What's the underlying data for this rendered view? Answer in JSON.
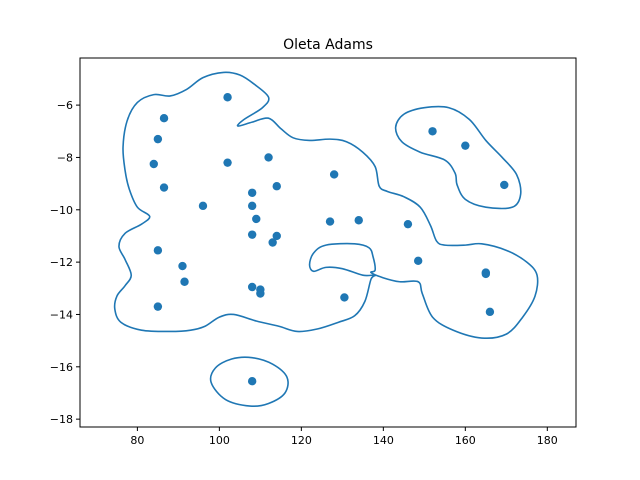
{
  "chart_data": {
    "type": "scatter",
    "title": "Oleta Adams",
    "xlabel": "",
    "ylabel": "",
    "xlim": [
      66,
      187
    ],
    "ylim": [
      -18.3,
      -4.2
    ],
    "xticks": [
      80,
      100,
      120,
      140,
      160,
      180
    ],
    "yticks": [
      -18,
      -16,
      -14,
      -12,
      -10,
      -8,
      -6
    ],
    "xtick_labels": [
      "80",
      "100",
      "120",
      "140",
      "160",
      "180"
    ],
    "ytick_labels": [
      "−18",
      "−16",
      "−14",
      "−12",
      "−10",
      "−8",
      "−6"
    ],
    "grid": false,
    "legend": "none",
    "series": [
      {
        "color": "#1f77b4",
        "points": [
          {
            "x": 102,
            "y": -5.7
          },
          {
            "x": 86.5,
            "y": -6.5
          },
          {
            "x": 85,
            "y": -7.3
          },
          {
            "x": 84,
            "y": -8.25
          },
          {
            "x": 86.5,
            "y": -9.15
          },
          {
            "x": 102,
            "y": -8.2
          },
          {
            "x": 112,
            "y": -8.0
          },
          {
            "x": 108,
            "y": -9.35
          },
          {
            "x": 114,
            "y": -9.1
          },
          {
            "x": 128,
            "y": -8.65
          },
          {
            "x": 96,
            "y": -9.85
          },
          {
            "x": 108,
            "y": -9.85
          },
          {
            "x": 109,
            "y": -10.35
          },
          {
            "x": 108,
            "y": -10.95
          },
          {
            "x": 114,
            "y": -11.0
          },
          {
            "x": 113,
            "y": -11.25
          },
          {
            "x": 127,
            "y": -10.45
          },
          {
            "x": 134,
            "y": -10.4
          },
          {
            "x": 146,
            "y": -10.55
          },
          {
            "x": 85,
            "y": -11.55
          },
          {
            "x": 91,
            "y": -12.15
          },
          {
            "x": 91.5,
            "y": -12.75
          },
          {
            "x": 148.5,
            "y": -11.95
          },
          {
            "x": 108,
            "y": -12.95
          },
          {
            "x": 110,
            "y": -13.05
          },
          {
            "x": 110,
            "y": -13.2
          },
          {
            "x": 130.5,
            "y": -13.35
          },
          {
            "x": 85,
            "y": -13.7
          },
          {
            "x": 165,
            "y": -12.4
          },
          {
            "x": 165,
            "y": -12.45
          },
          {
            "x": 166,
            "y": -13.9
          },
          {
            "x": 108,
            "y": -16.55
          },
          {
            "x": 152,
            "y": -7.0
          },
          {
            "x": 160,
            "y": -7.55
          },
          {
            "x": 169.5,
            "y": -9.05
          }
        ]
      }
    ],
    "contours": [
      {
        "color": "#1f77b4",
        "points": [
          [
            104.5,
            -6.8
          ],
          [
            108,
            -6.65
          ],
          [
            112,
            -6.5
          ],
          [
            115,
            -6.9
          ],
          [
            118,
            -7.25
          ],
          [
            122,
            -7.35
          ],
          [
            127,
            -7.3
          ],
          [
            131,
            -7.4
          ],
          [
            135,
            -7.8
          ],
          [
            138,
            -8.35
          ],
          [
            139,
            -9.1
          ],
          [
            141,
            -9.3
          ],
          [
            145,
            -9.5
          ],
          [
            149,
            -9.9
          ],
          [
            151.5,
            -10.6
          ],
          [
            153,
            -11.2
          ],
          [
            155,
            -11.35
          ],
          [
            160,
            -11.35
          ],
          [
            164,
            -11.3
          ],
          [
            170,
            -11.55
          ],
          [
            175,
            -12.0
          ],
          [
            177.5,
            -12.5
          ],
          [
            177,
            -13.3
          ],
          [
            174,
            -14.1
          ],
          [
            170,
            -14.75
          ],
          [
            164,
            -14.9
          ],
          [
            157,
            -14.6
          ],
          [
            152,
            -14.1
          ],
          [
            149.5,
            -13.2
          ],
          [
            148.5,
            -12.75
          ],
          [
            144,
            -12.75
          ],
          [
            140,
            -12.6
          ],
          [
            137,
            -12.4
          ],
          [
            138,
            -12.3
          ],
          [
            137.5,
            -11.8
          ],
          [
            136.5,
            -11.45
          ],
          [
            133,
            -11.3
          ],
          [
            126,
            -11.35
          ],
          [
            123,
            -11.65
          ],
          [
            122,
            -12.1
          ],
          [
            123,
            -12.35
          ],
          [
            126,
            -12.2
          ],
          [
            130,
            -12.25
          ],
          [
            135,
            -12.5
          ],
          [
            138,
            -12.5
          ],
          [
            137,
            -12.65
          ],
          [
            135.5,
            -13.5
          ],
          [
            133,
            -14.05
          ],
          [
            129,
            -14.3
          ],
          [
            124,
            -14.55
          ],
          [
            119,
            -14.65
          ],
          [
            114.5,
            -14.45
          ],
          [
            109,
            -14.25
          ],
          [
            103.5,
            -14.0
          ],
          [
            100,
            -14.1
          ],
          [
            96.5,
            -14.45
          ],
          [
            93,
            -14.6
          ],
          [
            88,
            -14.65
          ],
          [
            81,
            -14.6
          ],
          [
            76,
            -14.3
          ],
          [
            74.5,
            -13.8
          ],
          [
            75,
            -13.3
          ],
          [
            77,
            -12.9
          ],
          [
            78.5,
            -12.5
          ],
          [
            77,
            -11.9
          ],
          [
            75.5,
            -11.4
          ],
          [
            77,
            -10.9
          ],
          [
            81,
            -10.55
          ],
          [
            83,
            -10.25
          ],
          [
            80,
            -9.9
          ],
          [
            78,
            -9.2
          ],
          [
            77,
            -8.5
          ],
          [
            76.5,
            -7.6
          ],
          [
            77.5,
            -6.6
          ],
          [
            80,
            -5.9
          ],
          [
            84,
            -5.6
          ],
          [
            88,
            -5.65
          ],
          [
            92,
            -5.4
          ],
          [
            96,
            -4.95
          ],
          [
            101,
            -4.75
          ],
          [
            105,
            -4.85
          ],
          [
            108.5,
            -5.2
          ],
          [
            112,
            -5.7
          ],
          [
            110.5,
            -6.1
          ],
          [
            106,
            -6.55
          ],
          [
            104.5,
            -6.8
          ]
        ]
      },
      {
        "color": "#1f77b4",
        "points": [
          [
            150,
            -6.1
          ],
          [
            156,
            -6.1
          ],
          [
            161,
            -6.55
          ],
          [
            165,
            -7.35
          ],
          [
            169,
            -8.0
          ],
          [
            172.5,
            -8.65
          ],
          [
            173.5,
            -9.4
          ],
          [
            171.5,
            -9.9
          ],
          [
            165,
            -9.9
          ],
          [
            160,
            -9.6
          ],
          [
            158,
            -9.05
          ],
          [
            157.5,
            -8.6
          ],
          [
            155,
            -8.1
          ],
          [
            149,
            -7.8
          ],
          [
            144.5,
            -7.4
          ],
          [
            143,
            -6.85
          ],
          [
            145,
            -6.35
          ],
          [
            150,
            -6.1
          ]
        ]
      },
      {
        "color": "#1f77b4",
        "points": [
          [
            108,
            -15.65
          ],
          [
            113,
            -15.9
          ],
          [
            116.5,
            -16.4
          ],
          [
            116,
            -17.0
          ],
          [
            112,
            -17.4
          ],
          [
            107.5,
            -17.5
          ],
          [
            101.5,
            -17.25
          ],
          [
            98,
            -16.6
          ],
          [
            99,
            -16.05
          ],
          [
            103,
            -15.7
          ],
          [
            108,
            -15.65
          ]
        ]
      }
    ]
  }
}
